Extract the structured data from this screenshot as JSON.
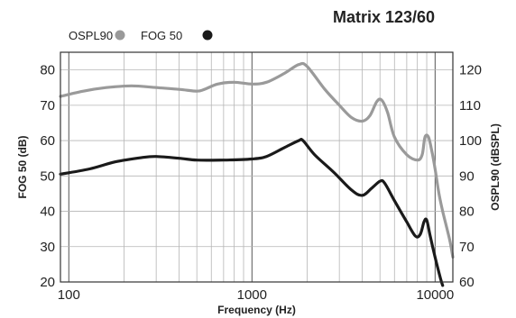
{
  "chart_data": {
    "type": "line",
    "title": "Matrix 123/60",
    "xlabel": "Frequency (Hz)",
    "ylabel_left": "FOG 50 (dB)",
    "ylabel_right": "OSPL90 (dBSPL)",
    "x_scale": "log",
    "xlim": [
      90,
      12500
    ],
    "ylim_left": [
      20,
      85
    ],
    "ylim_right": [
      60,
      125
    ],
    "x_ticks": [
      {
        "value": 100,
        "label": "100"
      },
      {
        "value": 1000,
        "label": "1000"
      },
      {
        "value": 10000,
        "label": "10000"
      }
    ],
    "y_ticks_left": [
      {
        "value": 20,
        "label": "20"
      },
      {
        "value": 30,
        "label": "30"
      },
      {
        "value": 40,
        "label": "40"
      },
      {
        "value": 50,
        "label": "50"
      },
      {
        "value": 60,
        "label": "60"
      },
      {
        "value": 70,
        "label": "70"
      },
      {
        "value": 80,
        "label": "80"
      }
    ],
    "y_ticks_right": [
      {
        "value": 60,
        "label": "60"
      },
      {
        "value": 70,
        "label": "70"
      },
      {
        "value": 80,
        "label": "80"
      },
      {
        "value": 90,
        "label": "90"
      },
      {
        "value": 100,
        "label": "100"
      },
      {
        "value": 110,
        "label": "110"
      },
      {
        "value": 120,
        "label": "120"
      }
    ],
    "grid": true,
    "legend_position": "top-left",
    "series": [
      {
        "name": "OSPL90",
        "axis": "right",
        "color": "#9a9a9a",
        "x": [
          90,
          120,
          160,
          220,
          300,
          400,
          500,
          550,
          650,
          800,
          1000,
          1200,
          1500,
          1800,
          2000,
          2500,
          3000,
          3500,
          4000,
          4400,
          4800,
          5100,
          5500,
          6000,
          7000,
          8000,
          8500,
          8800,
          9200,
          9600,
          10000,
          10500,
          11000,
          12000,
          12500
        ],
        "values": [
          112.5,
          114,
          115,
          115.5,
          115,
          114.5,
          114,
          114.5,
          116,
          116.5,
          116,
          116.5,
          119,
          121.5,
          121,
          114.5,
          110,
          106.5,
          105.5,
          107,
          111,
          111.5,
          108,
          101,
          96,
          94.5,
          96,
          101,
          101,
          97,
          92,
          85,
          80,
          72,
          67
        ]
      },
      {
        "name": "FOG 50",
        "axis": "left",
        "color": "#1a1a1a",
        "x": [
          90,
          130,
          180,
          250,
          300,
          400,
          500,
          700,
          1000,
          1200,
          1500,
          1800,
          1900,
          2200,
          2800,
          3500,
          4000,
          4500,
          5000,
          5300,
          6000,
          7000,
          7800,
          8300,
          8700,
          9000,
          9400,
          10000,
          10700,
          11000
        ],
        "values": [
          50.5,
          52,
          54,
          55.2,
          55.5,
          55,
          54.5,
          54.5,
          54.8,
          55.5,
          58,
          60,
          60,
          56,
          51,
          46,
          44.5,
          46.5,
          48.5,
          48,
          43,
          37,
          33,
          33.5,
          37,
          37.5,
          33,
          27,
          21,
          19
        ]
      }
    ]
  }
}
